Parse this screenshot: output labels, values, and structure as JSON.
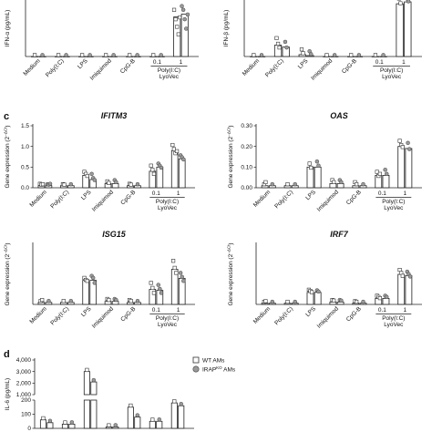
{
  "figure": {
    "panel_letters": [
      "c",
      "d"
    ],
    "legend": {
      "wt": "WT AMs",
      "irap_main": "IRAP",
      "irap_sup": "KO",
      "irap_suffix": " AMs"
    },
    "lyovec": {
      "conc1": "0.1",
      "conc2": "1",
      "line1": "Poly(I:C)",
      "line2": "LyoVec"
    },
    "ylabel_gene": {
      "main": "Gene expression (2",
      "sup": "−ΔCt",
      "suffix": ")"
    }
  },
  "chart_data": [
    {
      "id": "ifna",
      "type": "bar",
      "title": "",
      "ylabel": "IFN-α (pg/mL)",
      "ylim": [
        0,
        60
      ],
      "yticks": [],
      "categories": [
        "Medium",
        "Poly(I:C)",
        "LPS",
        "Imiquimod",
        "CpG-B",
        "0.1",
        "1"
      ],
      "series": [
        {
          "name": "WT AMs",
          "values": [
            0,
            0,
            0,
            0,
            0,
            0,
            42
          ]
        },
        {
          "name": "IRAPKO AMs",
          "values": [
            0,
            0,
            0,
            0,
            0,
            0,
            45
          ]
        }
      ],
      "points": [
        [
          [
            0
          ],
          [
            0
          ],
          [
            0
          ],
          [
            0
          ],
          [
            0
          ],
          [
            0
          ],
          [
            48,
            38,
            30,
            22,
            40
          ]
        ],
        [
          [
            0
          ],
          [
            0
          ],
          [
            0
          ],
          [
            0
          ],
          [
            0
          ],
          [
            0
          ],
          [
            52,
            48,
            38,
            28,
            43
          ]
        ]
      ]
    },
    {
      "id": "ifnb",
      "type": "bar",
      "title": "",
      "ylabel": "IFN-β (pg/mL)",
      "ylim": [
        0,
        60
      ],
      "yticks": [],
      "categories": [
        "Medium",
        "Poly(I:C)",
        "LPS",
        "Imiquimod",
        "CpG-B",
        "0.1",
        "1"
      ],
      "series": [
        {
          "name": "WT AMs",
          "values": [
            0,
            12,
            2,
            0,
            0,
            0,
            56
          ]
        },
        {
          "name": "IRAPKO AMs",
          "values": [
            0,
            10,
            1,
            0,
            0,
            0,
            58
          ]
        }
      ],
      "points": [
        [
          [
            0
          ],
          [
            18,
            12,
            8
          ],
          [
            6,
            2
          ],
          [
            0
          ],
          [
            0
          ],
          [
            0
          ],
          [
            60,
            55
          ]
        ],
        [
          [
            0
          ],
          [
            14,
            8
          ],
          [
            4,
            1
          ],
          [
            0
          ],
          [
            0
          ],
          [
            0
          ],
          [
            62,
            57
          ]
        ]
      ]
    },
    {
      "id": "ifitm3",
      "type": "bar",
      "title": "IFITM3",
      "ylabel": "Gene expression",
      "ylim": [
        0,
        1.5
      ],
      "yticks": [
        "0.0",
        "0.5",
        "1.0",
        "1.5"
      ],
      "categories": [
        "Medium",
        "Poly(I:C)",
        "LPS",
        "Imiquimod",
        "CpG-B",
        "0.1",
        "1"
      ],
      "series": [
        {
          "name": "WT AMs",
          "values": [
            0.05,
            0.05,
            0.3,
            0.1,
            0.05,
            0.4,
            0.9
          ]
        },
        {
          "name": "IRAPKO AMs",
          "values": [
            0.05,
            0.05,
            0.2,
            0.1,
            0.05,
            0.5,
            0.7
          ]
        }
      ],
      "points": [
        [
          [
            0.06,
            0.04,
            0.05
          ],
          [
            0.05,
            0.04
          ],
          [
            0.35,
            0.3,
            0.25
          ],
          [
            0.12,
            0.08
          ],
          [
            0.06,
            0.04
          ],
          [
            0.5,
            0.4,
            0.3
          ],
          [
            1.0,
            0.9,
            0.8,
            0.85
          ]
        ],
        [
          [
            0.05,
            0.04,
            0.06
          ],
          [
            0.05
          ],
          [
            0.3,
            0.2,
            0.15
          ],
          [
            0.15,
            0.1
          ],
          [
            0.05
          ],
          [
            0.55,
            0.5,
            0.45
          ],
          [
            0.75,
            0.7,
            0.65
          ]
        ]
      ]
    },
    {
      "id": "oas",
      "type": "bar",
      "title": "OAS",
      "ylabel": "Gene expression",
      "ylim": [
        0,
        0.3
      ],
      "yticks": [
        "0.00",
        "0.10",
        "0.20",
        "0.30"
      ],
      "categories": [
        "Medium",
        "Poly(I:C)",
        "LPS",
        "Imiquimod",
        "CpG-B",
        "0.1",
        "1"
      ],
      "series": [
        {
          "name": "WT AMs",
          "values": [
            0.01,
            0.01,
            0.1,
            0.02,
            0.01,
            0.06,
            0.2
          ]
        },
        {
          "name": "IRAPKO AMs",
          "values": [
            0.01,
            0.01,
            0.1,
            0.02,
            0.01,
            0.06,
            0.19
          ]
        }
      ],
      "points": [
        [
          [
            0.01,
            0.02
          ],
          [
            0.01
          ],
          [
            0.11,
            0.09
          ],
          [
            0.03,
            0.02
          ],
          [
            0.02,
            0.01
          ],
          [
            0.07,
            0.05,
            0.06
          ],
          [
            0.22,
            0.2,
            0.19
          ]
        ],
        [
          [
            0.01
          ],
          [
            0.01
          ],
          [
            0.12,
            0.1
          ],
          [
            0.03,
            0.02
          ],
          [
            0.01
          ],
          [
            0.08,
            0.06
          ],
          [
            0.21,
            0.18
          ]
        ]
      ]
    },
    {
      "id": "isg15",
      "type": "bar",
      "title": "ISG15",
      "ylabel": "Gene expression",
      "ylim": [
        0,
        0.6
      ],
      "yticks": [],
      "categories": [
        "Medium",
        "Poly(I:C)",
        "LPS",
        "Imiquimod",
        "CpG-B",
        "0.1",
        "1"
      ],
      "series": [
        {
          "name": "WT AMs",
          "values": [
            0.02,
            0.02,
            0.24,
            0.03,
            0.02,
            0.15,
            0.35
          ]
        },
        {
          "name": "IRAPKO AMs",
          "values": [
            0.02,
            0.02,
            0.24,
            0.03,
            0.02,
            0.14,
            0.26
          ]
        }
      ],
      "points": [
        [
          [
            0.02,
            0.03
          ],
          [
            0.02
          ],
          [
            0.25,
            0.23,
            0.22
          ],
          [
            0.04,
            0.03
          ],
          [
            0.03,
            0.02
          ],
          [
            0.2,
            0.15,
            0.1
          ],
          [
            0.42,
            0.35,
            0.3
          ]
        ],
        [
          [
            0.02
          ],
          [
            0.02
          ],
          [
            0.27,
            0.25,
            0.2
          ],
          [
            0.04,
            0.03
          ],
          [
            0.02
          ],
          [
            0.18,
            0.14,
            0.1
          ],
          [
            0.3,
            0.26,
            0.22
          ]
        ]
      ]
    },
    {
      "id": "irf7",
      "type": "bar",
      "title": "IRF7",
      "ylabel": "Gene expression",
      "ylim": [
        0,
        1.0
      ],
      "yticks": [],
      "categories": [
        "Medium",
        "Poly(I:C)",
        "LPS",
        "Imiquimod",
        "CpG-B",
        "0.1",
        "1"
      ],
      "series": [
        {
          "name": "WT AMs",
          "values": [
            0.02,
            0.02,
            0.2,
            0.04,
            0.02,
            0.1,
            0.5
          ]
        },
        {
          "name": "IRAPKO AMs",
          "values": [
            0.02,
            0.02,
            0.2,
            0.04,
            0.02,
            0.1,
            0.48
          ]
        }
      ],
      "points": [
        [
          [
            0.02,
            0.03
          ],
          [
            0.02
          ],
          [
            0.22,
            0.2,
            0.18
          ],
          [
            0.05,
            0.04
          ],
          [
            0.03,
            0.02
          ],
          [
            0.12,
            0.1,
            0.08
          ],
          [
            0.55,
            0.5,
            0.45
          ]
        ],
        [
          [
            0.02
          ],
          [
            0.02
          ],
          [
            0.21,
            0.19
          ],
          [
            0.05,
            0.04
          ],
          [
            0.02
          ],
          [
            0.12,
            0.1
          ],
          [
            0.52,
            0.48,
            0.44
          ]
        ]
      ]
    },
    {
      "id": "il6",
      "type": "bar",
      "title": "",
      "ylabel": "IL-6 (pg/mL)",
      "ylim": [
        0,
        4000
      ],
      "yticks": [
        "4,000",
        "3,000",
        "2,000",
        "1,000",
        "200",
        "100",
        "0"
      ],
      "categories": [
        "Medium",
        "Poly(I:C)",
        "LPS",
        "Imiquimod",
        "CpG-B",
        "0.1",
        "1"
      ],
      "series": [
        {
          "name": "WT AMs",
          "values": [
            60,
            30,
            3000,
            10,
            150,
            50,
            180
          ]
        },
        {
          "name": "IRAPKO AMs",
          "values": [
            40,
            30,
            2100,
            10,
            80,
            50,
            160
          ]
        }
      ]
    }
  ]
}
